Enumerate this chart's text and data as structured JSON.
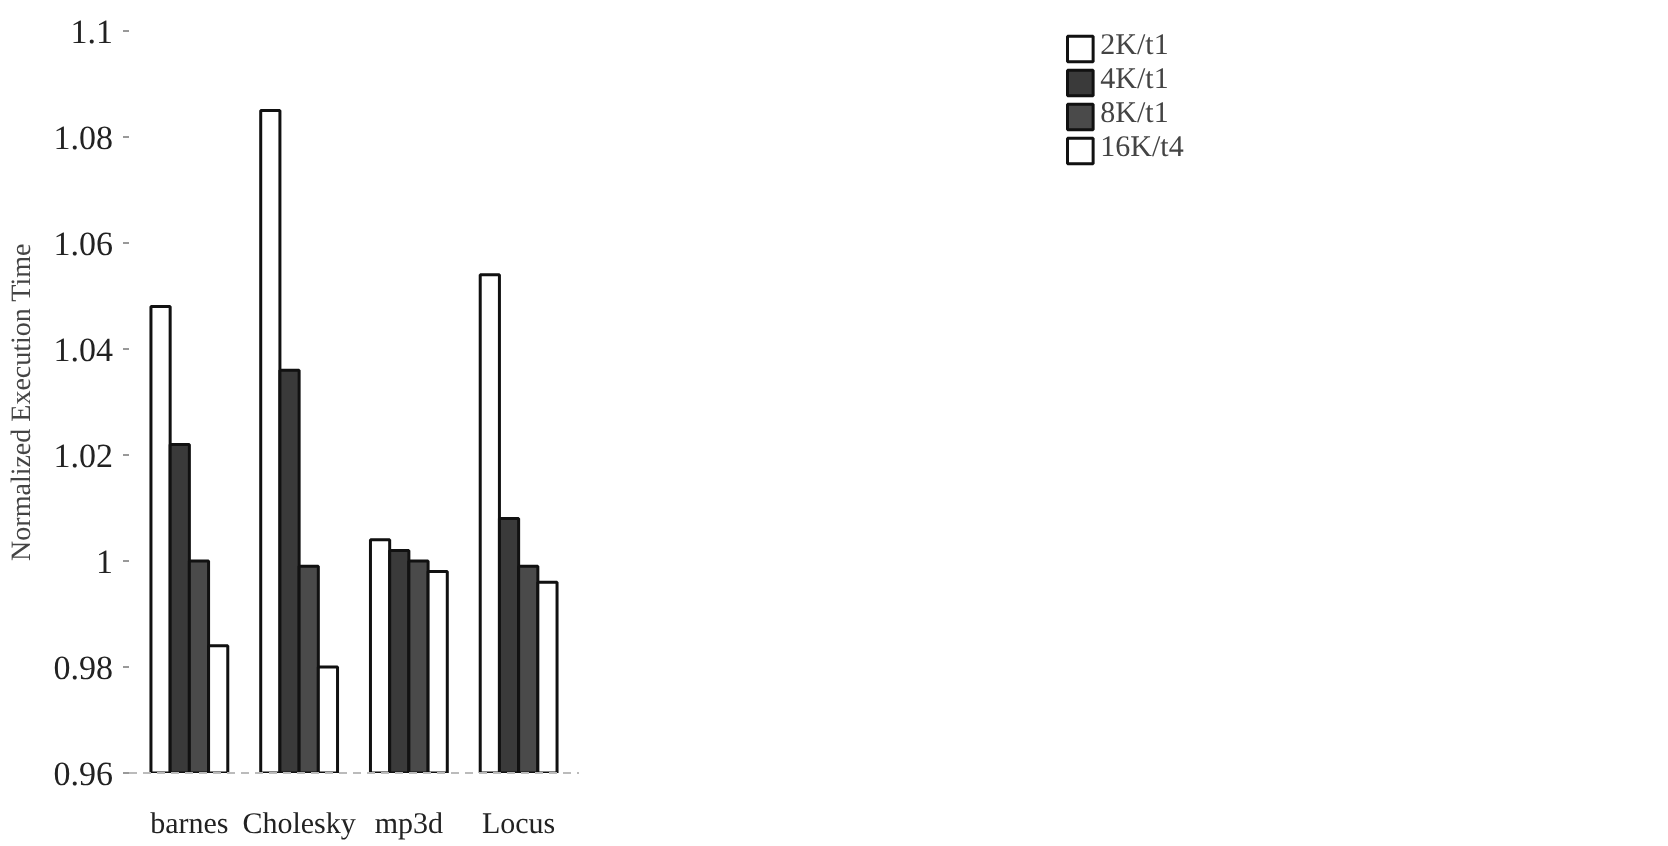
{
  "chart_data": {
    "type": "bar",
    "ylabel": "Normalized Execution Time",
    "categories": [
      "barnes",
      "Cholesky",
      "mp3d",
      "Locus"
    ],
    "series": [
      {
        "name": "2K/t1",
        "color": "#ffffff",
        "values": [
          1.048,
          1.085,
          1.004,
          1.054
        ]
      },
      {
        "name": "4K/t1",
        "color": "#3a3a3a",
        "values": [
          1.022,
          1.036,
          1.002,
          1.008
        ]
      },
      {
        "name": "8K/t1",
        "color": "#4a4a4a",
        "values": [
          1.0,
          0.999,
          1.0,
          0.999
        ]
      },
      {
        "name": "16K/t4",
        "color": "#ffffff",
        "values": [
          0.984,
          0.98,
          0.998,
          0.996
        ]
      }
    ],
    "ylim": [
      0.96,
      1.1
    ],
    "yticks": [
      0.96,
      0.98,
      1,
      1.02,
      1.04,
      1.06,
      1.08,
      1.1
    ],
    "legend": "top right",
    "grid": false
  }
}
